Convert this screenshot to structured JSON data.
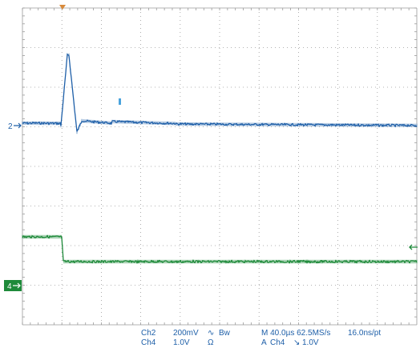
{
  "colors": {
    "ch2": "#1e5fa8",
    "ch4": "#1e8a3a",
    "grid": "#9a9a9a",
    "trigger_marker": "#d88a3a",
    "cursor_marker": "#4aa3dd"
  },
  "markers": {
    "ch2_label": "2",
    "ch4_label": "4",
    "trigger_pos_icon": "trigger-position-icon",
    "trigger_level_icon": "trigger-level-arrow-icon"
  },
  "readout": {
    "ch2_name": "Ch2",
    "ch2_scale": "200mV",
    "ch2_coupling_icon": "∿",
    "ch2_bw": "Bw",
    "ch4_name": "Ch4",
    "ch4_scale": "1.0V",
    "ch4_impedance": "Ω",
    "timebase": "M 40.0µs 62.5MS/s",
    "sample_interval": "16.0ns/pt",
    "trigger_mode": "A",
    "trigger_source": "Ch4",
    "trigger_slope_icon": "↘",
    "trigger_level": "1.0V"
  }
}
